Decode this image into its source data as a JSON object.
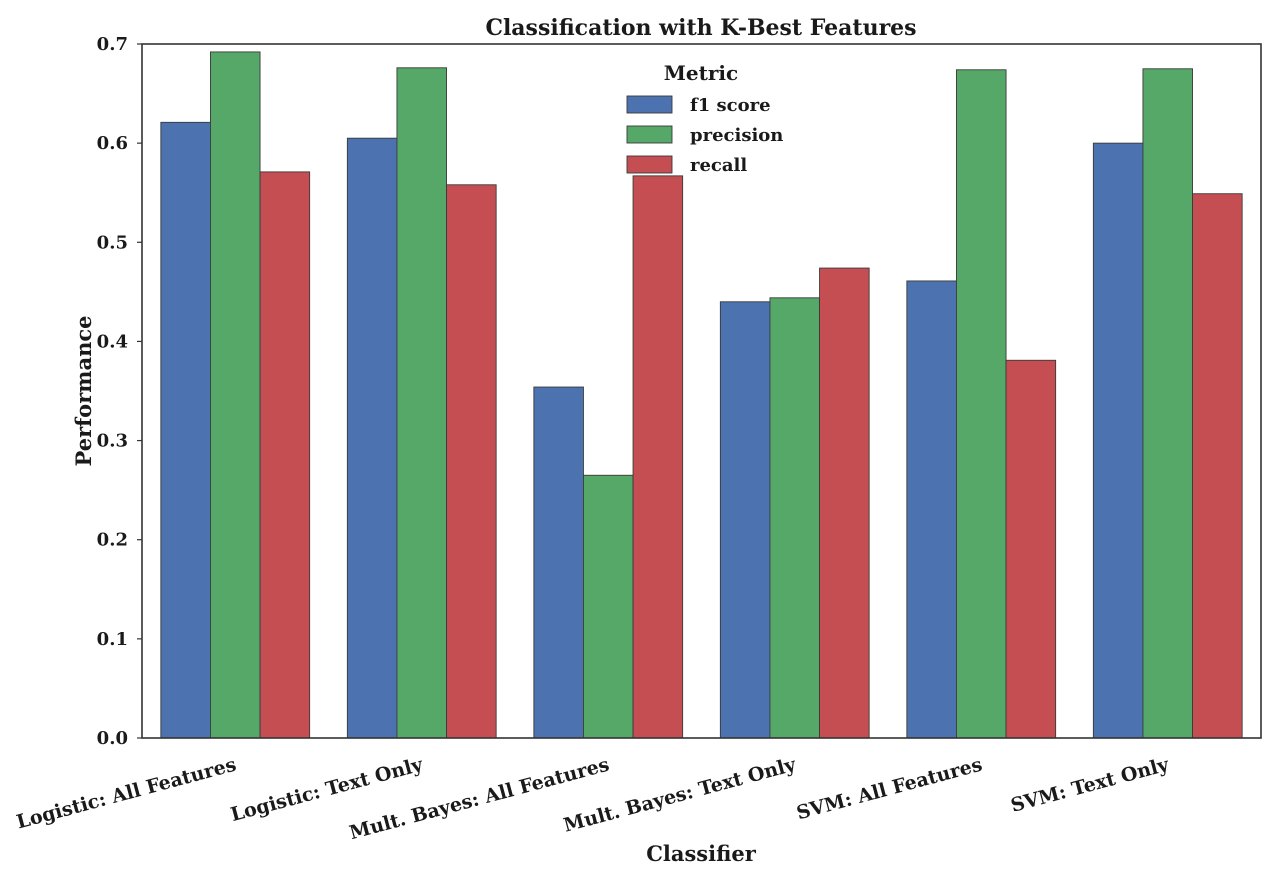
{
  "chart_data": {
    "type": "bar",
    "title": "Classification with K-Best Features",
    "xlabel": "Classifier",
    "ylabel": "Performance",
    "ylim": [
      0,
      0.7
    ],
    "yticks": [
      "0.0",
      "0.1",
      "0.2",
      "0.3",
      "0.4",
      "0.5",
      "0.6",
      "0.7"
    ],
    "categories": [
      "Logistic: All Features",
      "Logistic: Text Only",
      "Mult. Bayes: All Features",
      "Mult. Bayes: Text Only",
      "SVM: All Features",
      "SVM: Text Only"
    ],
    "series": [
      {
        "name": "f1 score",
        "color": "#4C72B0",
        "values": [
          0.621,
          0.605,
          0.354,
          0.44,
          0.461,
          0.6
        ]
      },
      {
        "name": "precision",
        "color": "#55A868",
        "values": [
          0.692,
          0.676,
          0.265,
          0.444,
          0.674,
          0.675
        ]
      },
      {
        "name": "recall",
        "color": "#C44E52",
        "values": [
          0.571,
          0.558,
          0.567,
          0.474,
          0.381,
          0.549
        ]
      }
    ],
    "legend": {
      "title": "Metric",
      "placement": "upper-center"
    },
    "grid": false
  }
}
